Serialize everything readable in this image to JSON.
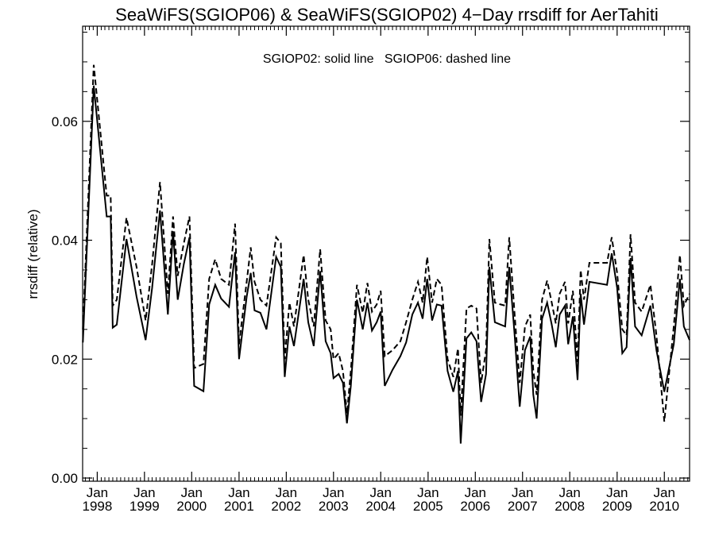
{
  "chart_data": {
    "type": "line",
    "title": "SeaWiFS(SGIOP06) & SeaWiFS(SGIOP02) 4−Day rrsdiff for AerTahiti",
    "annotation": "SGIOP02: solid line   SGIOP06: dashed line",
    "xlabel": "",
    "ylabel": "rrsdiff (relative)",
    "x_range": [
      "1997-09-10",
      "2010-07-15"
    ],
    "ylim": [
      0.0,
      0.076
    ],
    "y_ticks": [
      0.0,
      0.02,
      0.04,
      0.06
    ],
    "y_tick_labels": [
      "0.00",
      "0.02",
      "0.04",
      "0.06"
    ],
    "x_ticks": [
      {
        "date": "1998-01-01",
        "month": "Jan",
        "year": "1998"
      },
      {
        "date": "1999-01-01",
        "month": "Jan",
        "year": "1999"
      },
      {
        "date": "2000-01-01",
        "month": "Jan",
        "year": "2000"
      },
      {
        "date": "2001-01-01",
        "month": "Jan",
        "year": "2001"
      },
      {
        "date": "2002-01-01",
        "month": "Jan",
        "year": "2002"
      },
      {
        "date": "2003-01-01",
        "month": "Jan",
        "year": "2003"
      },
      {
        "date": "2004-01-01",
        "month": "Jan",
        "year": "2004"
      },
      {
        "date": "2005-01-01",
        "month": "Jan",
        "year": "2005"
      },
      {
        "date": "2006-01-01",
        "month": "Jan",
        "year": "2006"
      },
      {
        "date": "2007-01-01",
        "month": "Jan",
        "year": "2007"
      },
      {
        "date": "2008-01-01",
        "month": "Jan",
        "year": "2008"
      },
      {
        "date": "2009-01-01",
        "month": "Jan",
        "year": "2009"
      },
      {
        "date": "2010-01-01",
        "month": "Jan",
        "year": "2010"
      }
    ],
    "grid": false,
    "series": [
      {
        "name": "SGIOP02",
        "style": "solid",
        "color": "#000000",
        "points": [
          [
            "1997-09-12",
            0.0228
          ],
          [
            "1997-12-05",
            0.066
          ],
          [
            "1998-03-15",
            0.044
          ],
          [
            "1998-04-15",
            0.044
          ],
          [
            "1998-05-01",
            0.0253
          ],
          [
            "1998-06-01",
            0.0258
          ],
          [
            "1998-08-15",
            0.0402
          ],
          [
            "1998-11-01",
            0.0305
          ],
          [
            "1999-01-10",
            0.0232
          ],
          [
            "1999-03-01",
            0.032
          ],
          [
            "1999-05-01",
            0.045
          ],
          [
            "1999-07-01",
            0.0275
          ],
          [
            "1999-08-10",
            0.0415
          ],
          [
            "1999-09-15",
            0.03
          ],
          [
            "1999-11-01",
            0.036
          ],
          [
            "1999-12-15",
            0.0405
          ],
          [
            "2000-01-20",
            0.0155
          ],
          [
            "2000-04-01",
            0.0146
          ],
          [
            "2000-05-15",
            0.0292
          ],
          [
            "2000-07-01",
            0.0325
          ],
          [
            "2000-08-15",
            0.0302
          ],
          [
            "2000-10-15",
            0.0288
          ],
          [
            "2000-12-01",
            0.038
          ],
          [
            "2001-01-01",
            0.02
          ],
          [
            "2001-03-01",
            0.0305
          ],
          [
            "2001-04-01",
            0.0345
          ],
          [
            "2001-05-01",
            0.0282
          ],
          [
            "2001-06-15",
            0.0278
          ],
          [
            "2001-08-01",
            0.025
          ],
          [
            "2001-10-15",
            0.0372
          ],
          [
            "2001-11-20",
            0.0355
          ],
          [
            "2001-12-20",
            0.017
          ],
          [
            "2002-01-25",
            0.0255
          ],
          [
            "2002-03-01",
            0.0222
          ],
          [
            "2002-05-15",
            0.0335
          ],
          [
            "2002-06-20",
            0.0262
          ],
          [
            "2002-08-01",
            0.0222
          ],
          [
            "2002-09-20",
            0.0348
          ],
          [
            "2002-11-01",
            0.023
          ],
          [
            "2002-12-10",
            0.021
          ],
          [
            "2003-01-01",
            0.0168
          ],
          [
            "2003-02-10",
            0.0175
          ],
          [
            "2003-03-15",
            0.016
          ],
          [
            "2003-04-15",
            0.0092
          ],
          [
            "2003-05-15",
            0.0155
          ],
          [
            "2003-07-01",
            0.03
          ],
          [
            "2003-08-15",
            0.025
          ],
          [
            "2003-09-20",
            0.0295
          ],
          [
            "2003-10-25",
            0.0248
          ],
          [
            "2003-12-01",
            0.0262
          ],
          [
            "2004-01-01",
            0.028
          ],
          [
            "2004-02-01",
            0.0155
          ],
          [
            "2004-04-01",
            0.0182
          ],
          [
            "2004-06-01",
            0.0205
          ],
          [
            "2004-07-15",
            0.0228
          ],
          [
            "2004-09-01",
            0.0275
          ],
          [
            "2004-10-15",
            0.0295
          ],
          [
            "2004-11-20",
            0.0268
          ],
          [
            "2004-12-25",
            0.0335
          ],
          [
            "2005-02-01",
            0.0265
          ],
          [
            "2005-03-10",
            0.0292
          ],
          [
            "2005-04-15",
            0.029
          ],
          [
            "2005-06-01",
            0.018
          ],
          [
            "2005-07-15",
            0.0145
          ],
          [
            "2005-08-20",
            0.018
          ],
          [
            "2005-09-10",
            0.0058
          ],
          [
            "2005-10-25",
            0.0235
          ],
          [
            "2005-12-01",
            0.0245
          ],
          [
            "2006-01-10",
            0.023
          ],
          [
            "2006-02-15",
            0.0128
          ],
          [
            "2006-03-25",
            0.0175
          ],
          [
            "2006-04-20",
            0.0355
          ],
          [
            "2006-06-01",
            0.0262
          ],
          [
            "2006-07-15",
            0.0258
          ],
          [
            "2006-08-20",
            0.0255
          ],
          [
            "2006-09-20",
            0.0355
          ],
          [
            "2006-11-01",
            0.024
          ],
          [
            "2006-12-10",
            0.012
          ],
          [
            "2007-01-20",
            0.0215
          ],
          [
            "2007-03-01",
            0.0238
          ],
          [
            "2007-03-25",
            0.014
          ],
          [
            "2007-04-20",
            0.01
          ],
          [
            "2007-06-01",
            0.0268
          ],
          [
            "2007-07-10",
            0.0295
          ],
          [
            "2007-08-15",
            0.0258
          ],
          [
            "2007-09-15",
            0.022
          ],
          [
            "2007-10-15",
            0.0275
          ],
          [
            "2007-11-25",
            0.029
          ],
          [
            "2007-12-20",
            0.0225
          ],
          [
            "2008-01-25",
            0.0272
          ],
          [
            "2008-03-01",
            0.0165
          ],
          [
            "2008-03-25",
            0.031
          ],
          [
            "2008-04-20",
            0.0258
          ],
          [
            "2008-06-01",
            0.033
          ],
          [
            "2008-10-15",
            0.0325
          ],
          [
            "2008-11-20",
            0.0378
          ],
          [
            "2009-01-01",
            0.032
          ],
          [
            "2009-02-10",
            0.021
          ],
          [
            "2009-03-15",
            0.022
          ],
          [
            "2009-04-15",
            0.037
          ],
          [
            "2009-05-20",
            0.0255
          ],
          [
            "2009-07-10",
            0.024
          ],
          [
            "2009-09-15",
            0.029
          ],
          [
            "2009-11-01",
            0.0215
          ],
          [
            "2010-01-01",
            0.0145
          ],
          [
            "2010-03-15",
            0.0225
          ],
          [
            "2010-05-01",
            0.0335
          ],
          [
            "2010-06-01",
            0.0255
          ],
          [
            "2010-07-15",
            0.0232
          ]
        ]
      },
      {
        "name": "SGIOP06",
        "style": "dashed",
        "color": "#000000",
        "points": [
          [
            "1997-09-12",
            0.025
          ],
          [
            "1997-12-05",
            0.0695
          ],
          [
            "1998-03-15",
            0.0475
          ],
          [
            "1998-04-15",
            0.0475
          ],
          [
            "1998-05-01",
            0.029
          ],
          [
            "1998-06-01",
            0.03
          ],
          [
            "1998-08-15",
            0.0438
          ],
          [
            "1998-11-01",
            0.0355
          ],
          [
            "1999-01-10",
            0.0265
          ],
          [
            "1999-03-01",
            0.036
          ],
          [
            "1999-05-01",
            0.0498
          ],
          [
            "1999-07-01",
            0.031
          ],
          [
            "1999-08-10",
            0.044
          ],
          [
            "1999-09-15",
            0.034
          ],
          [
            "1999-11-01",
            0.0395
          ],
          [
            "1999-12-15",
            0.044
          ],
          [
            "2000-01-20",
            0.0185
          ],
          [
            "2000-04-01",
            0.0192
          ],
          [
            "2000-05-15",
            0.0335
          ],
          [
            "2000-07-01",
            0.0368
          ],
          [
            "2000-08-15",
            0.0335
          ],
          [
            "2000-10-15",
            0.0325
          ],
          [
            "2000-12-01",
            0.0428
          ],
          [
            "2001-01-01",
            0.0225
          ],
          [
            "2001-03-01",
            0.033
          ],
          [
            "2001-04-01",
            0.0388
          ],
          [
            "2001-05-01",
            0.033
          ],
          [
            "2001-06-15",
            0.03
          ],
          [
            "2001-08-01",
            0.029
          ],
          [
            "2001-10-15",
            0.0405
          ],
          [
            "2001-11-20",
            0.0395
          ],
          [
            "2001-12-20",
            0.02
          ],
          [
            "2002-01-25",
            0.0295
          ],
          [
            "2002-03-01",
            0.0255
          ],
          [
            "2002-05-15",
            0.0375
          ],
          [
            "2002-06-20",
            0.03
          ],
          [
            "2002-08-01",
            0.0255
          ],
          [
            "2002-09-20",
            0.0385
          ],
          [
            "2002-11-01",
            0.0265
          ],
          [
            "2002-12-10",
            0.025
          ],
          [
            "2003-01-01",
            0.02
          ],
          [
            "2003-02-10",
            0.021
          ],
          [
            "2003-03-15",
            0.018
          ],
          [
            "2003-04-15",
            0.0108
          ],
          [
            "2003-05-15",
            0.018
          ],
          [
            "2003-07-01",
            0.0325
          ],
          [
            "2003-08-15",
            0.0278
          ],
          [
            "2003-09-20",
            0.0328
          ],
          [
            "2003-10-25",
            0.028
          ],
          [
            "2003-12-01",
            0.0292
          ],
          [
            "2004-01-01",
            0.0315
          ],
          [
            "2004-02-01",
            0.0205
          ],
          [
            "2004-04-01",
            0.0215
          ],
          [
            "2004-06-01",
            0.023
          ],
          [
            "2004-07-15",
            0.0262
          ],
          [
            "2004-09-01",
            0.03
          ],
          [
            "2004-10-15",
            0.033
          ],
          [
            "2004-11-20",
            0.0295
          ],
          [
            "2004-12-25",
            0.0372
          ],
          [
            "2005-02-01",
            0.0295
          ],
          [
            "2005-03-10",
            0.0335
          ],
          [
            "2005-04-15",
            0.0325
          ],
          [
            "2005-06-01",
            0.02
          ],
          [
            "2005-07-15",
            0.017
          ],
          [
            "2005-08-20",
            0.0218
          ],
          [
            "2005-09-10",
            0.0105
          ],
          [
            "2005-10-25",
            0.0285
          ],
          [
            "2005-12-01",
            0.029
          ],
          [
            "2006-01-10",
            0.0285
          ],
          [
            "2006-02-15",
            0.016
          ],
          [
            "2006-03-25",
            0.0215
          ],
          [
            "2006-04-20",
            0.0402
          ],
          [
            "2006-06-01",
            0.0295
          ],
          [
            "2006-07-15",
            0.0292
          ],
          [
            "2006-08-20",
            0.029
          ],
          [
            "2006-09-20",
            0.0405
          ],
          [
            "2006-11-01",
            0.0275
          ],
          [
            "2006-12-10",
            0.016
          ],
          [
            "2007-01-20",
            0.0255
          ],
          [
            "2007-03-01",
            0.0275
          ],
          [
            "2007-03-25",
            0.018
          ],
          [
            "2007-04-20",
            0.014
          ],
          [
            "2007-06-01",
            0.03
          ],
          [
            "2007-07-10",
            0.0332
          ],
          [
            "2007-08-15",
            0.0295
          ],
          [
            "2007-09-15",
            0.026
          ],
          [
            "2007-10-15",
            0.031
          ],
          [
            "2007-11-25",
            0.033
          ],
          [
            "2007-12-20",
            0.026
          ],
          [
            "2008-01-25",
            0.0315
          ],
          [
            "2008-03-01",
            0.0195
          ],
          [
            "2008-03-25",
            0.035
          ],
          [
            "2008-04-20",
            0.03
          ],
          [
            "2008-06-01",
            0.0362
          ],
          [
            "2008-10-15",
            0.0362
          ],
          [
            "2008-11-20",
            0.0405
          ],
          [
            "2009-01-01",
            0.0345
          ],
          [
            "2009-02-10",
            0.025
          ],
          [
            "2009-03-15",
            0.024
          ],
          [
            "2009-04-15",
            0.041
          ],
          [
            "2009-05-20",
            0.0295
          ],
          [
            "2009-07-10",
            0.028
          ],
          [
            "2009-09-15",
            0.0325
          ],
          [
            "2009-11-01",
            0.024
          ],
          [
            "2010-01-01",
            0.0095
          ],
          [
            "2010-03-15",
            0.0255
          ],
          [
            "2010-05-01",
            0.0375
          ],
          [
            "2010-06-01",
            0.029
          ],
          [
            "2010-07-15",
            0.031
          ]
        ]
      }
    ]
  }
}
